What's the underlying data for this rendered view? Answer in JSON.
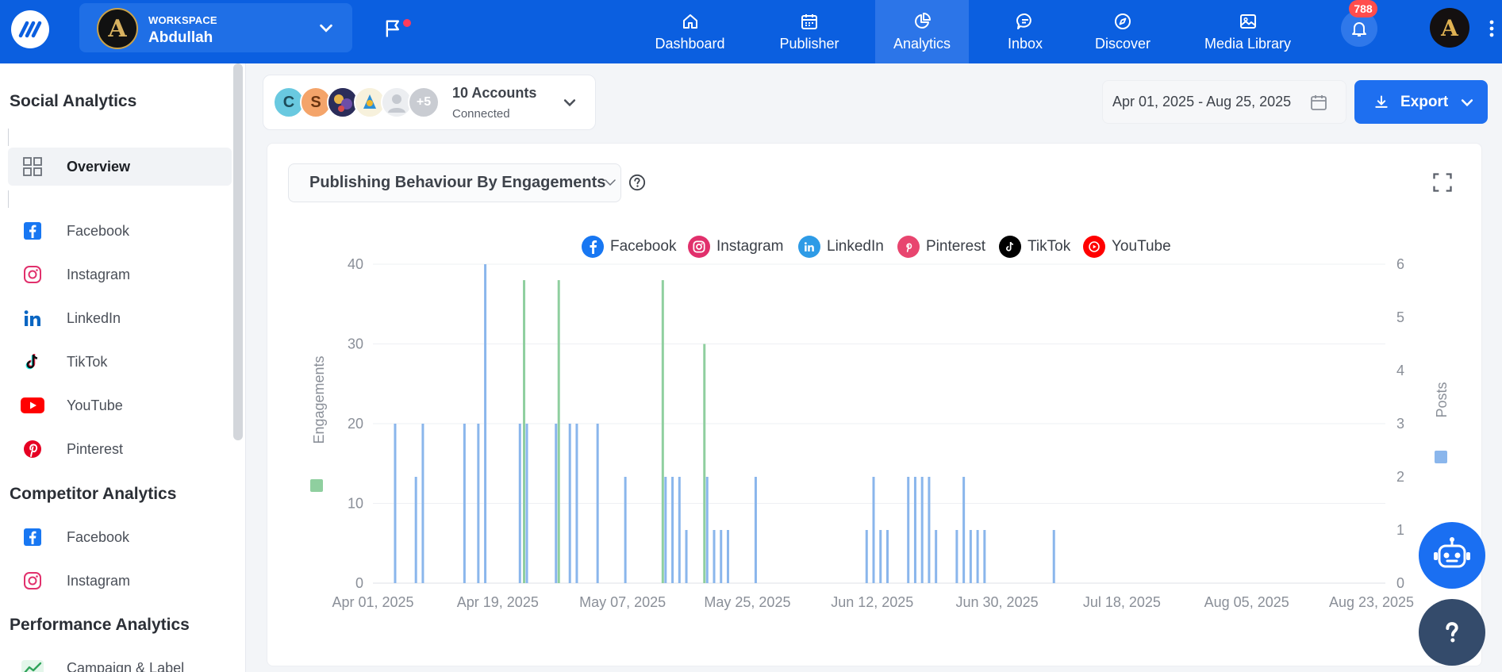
{
  "header": {
    "workspace_label": "WORKSPACE",
    "workspace_name": "Abdullah",
    "workspace_initial": "A",
    "nav": [
      {
        "label": "Dashboard",
        "icon": "home-icon"
      },
      {
        "label": "Publisher",
        "icon": "calendar-icon"
      },
      {
        "label": "Analytics",
        "icon": "pie-chart-icon",
        "active": true
      },
      {
        "label": "Inbox",
        "icon": "chat-icon"
      },
      {
        "label": "Discover",
        "icon": "compass-icon"
      },
      {
        "label": "Media Library",
        "icon": "image-icon"
      }
    ],
    "notifications_count": "788",
    "user_initial": "A",
    "accent_color": "#0b5fe0"
  },
  "sidebar": {
    "social_heading": "Social Analytics",
    "social_items": [
      {
        "label": "Overview",
        "icon": "grid-icon",
        "active": true
      },
      {
        "label": "Facebook",
        "icon": "facebook-icon"
      },
      {
        "label": "Instagram",
        "icon": "instagram-icon"
      },
      {
        "label": "LinkedIn",
        "icon": "linkedin-icon"
      },
      {
        "label": "TikTok",
        "icon": "tiktok-icon"
      },
      {
        "label": "YouTube",
        "icon": "youtube-icon"
      },
      {
        "label": "Pinterest",
        "icon": "pinterest-icon"
      }
    ],
    "competitor_heading": "Competitor Analytics",
    "competitor_items": [
      {
        "label": "Facebook",
        "icon": "facebook-icon"
      },
      {
        "label": "Instagram",
        "icon": "instagram-icon"
      }
    ],
    "performance_heading": "Performance Analytics",
    "performance_items": [
      {
        "label": "Campaign & Label",
        "icon": "trend-icon"
      }
    ]
  },
  "filters": {
    "accounts_avatars": [
      "C",
      "S",
      "",
      "",
      "",
      "+5"
    ],
    "accounts_title": "10 Accounts",
    "accounts_sub": "Connected",
    "date_range": "Apr 01, 2025 - Aug 25, 2025",
    "export_label": "Export"
  },
  "card": {
    "selector_label": "Publishing Behaviour By Engagements"
  },
  "chart_data": {
    "type": "bar",
    "title": "Publishing Behaviour By Engagements",
    "legend": [
      "Facebook",
      "Instagram",
      "LinkedIn",
      "Pinterest",
      "TikTok",
      "YouTube"
    ],
    "legend_colors": {
      "Facebook": "#1877f2",
      "Instagram": "#e1306c",
      "LinkedIn": "#2e9be6",
      "Pinterest": "#e60023",
      "TikTok": "#000000",
      "YouTube": "#ff0000"
    },
    "ylabel": "Engagements",
    "y2label": "Posts",
    "ylim": [
      0,
      40
    ],
    "y2lim": [
      0,
      6
    ],
    "yticks": [
      "0",
      "10",
      "20",
      "30",
      "40"
    ],
    "y2ticks": [
      "0",
      "1",
      "2",
      "3",
      "4",
      "5",
      "6"
    ],
    "xlim_days": [
      0,
      146
    ],
    "xticks": [
      {
        "day": 0,
        "label": "Apr 01, 2025"
      },
      {
        "day": 18,
        "label": "Apr 19, 2025"
      },
      {
        "day": 36,
        "label": "May 07, 2025"
      },
      {
        "day": 54,
        "label": "May 25, 2025"
      },
      {
        "day": 72,
        "label": "Jun 12, 2025"
      },
      {
        "day": 90,
        "label": "Jun 30, 2025"
      },
      {
        "day": 108,
        "label": "Jul 18, 2025"
      },
      {
        "day": 126,
        "label": "Aug 05, 2025"
      },
      {
        "day": 144,
        "label": "Aug 23, 2025"
      }
    ],
    "series": [
      {
        "name": "Posts",
        "color": "#8ab6ec",
        "axis": "right",
        "points": [
          [
            3.2,
            3
          ],
          [
            6.2,
            2
          ],
          [
            7.2,
            3
          ],
          [
            13.2,
            3
          ],
          [
            15.2,
            3
          ],
          [
            16.2,
            6
          ],
          [
            21.2,
            3
          ],
          [
            22.2,
            3
          ],
          [
            26.4,
            3
          ],
          [
            28.4,
            3
          ],
          [
            29.4,
            3
          ],
          [
            32.4,
            3
          ],
          [
            36.4,
            2
          ],
          [
            42.2,
            2
          ],
          [
            43.2,
            2
          ],
          [
            44.2,
            2
          ],
          [
            45.2,
            1
          ],
          [
            48.2,
            2
          ],
          [
            49.2,
            1
          ],
          [
            50.2,
            1
          ],
          [
            51.2,
            1
          ],
          [
            55.2,
            2
          ],
          [
            71.2,
            1
          ],
          [
            72.2,
            2
          ],
          [
            73.2,
            1
          ],
          [
            74.2,
            1
          ],
          [
            77.2,
            2
          ],
          [
            78.2,
            2
          ],
          [
            79.2,
            2
          ],
          [
            80.2,
            2
          ],
          [
            81.2,
            1
          ],
          [
            84.2,
            1
          ],
          [
            85.2,
            2
          ],
          [
            86.2,
            1
          ],
          [
            87.2,
            1
          ],
          [
            88.2,
            1
          ],
          [
            98.2,
            1
          ]
        ]
      },
      {
        "name": "Engagements",
        "color": "#8fcf9f",
        "axis": "left",
        "points": [
          [
            21.8,
            38
          ],
          [
            26.8,
            38
          ],
          [
            41.8,
            38
          ],
          [
            47.8,
            30
          ]
        ]
      }
    ]
  }
}
